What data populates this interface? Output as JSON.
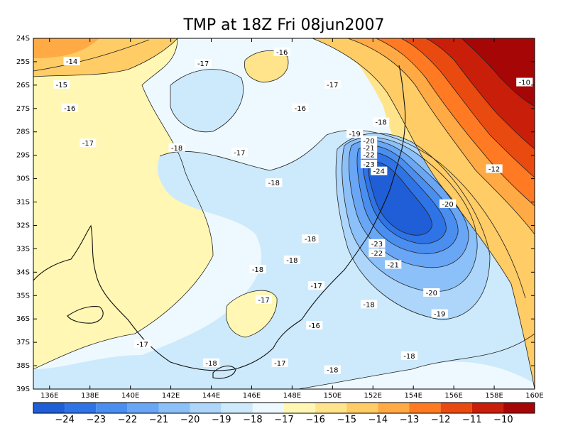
{
  "chart_data": {
    "type": "heatmap",
    "title": "TMP at 18Z Fri 08jun2007",
    "x_ticks": [
      "136E",
      "138E",
      "140E",
      "142E",
      "144E",
      "146E",
      "148E",
      "150E",
      "152E",
      "154E",
      "156E",
      "158E",
      "160E"
    ],
    "y_ticks": [
      "24S",
      "25S",
      "26S",
      "27S",
      "28S",
      "29S",
      "30S",
      "31S",
      "32S",
      "33S",
      "34S",
      "35S",
      "36S",
      "37S",
      "38S",
      "39S"
    ],
    "xlim": [
      135.2,
      160
    ],
    "ylim": [
      -39,
      -24
    ],
    "colorbar": {
      "levels": [
        -24,
        -23,
        -22,
        -21,
        -20,
        -19,
        -18,
        -17,
        -16,
        -15,
        -14,
        -13,
        -12,
        -11,
        -10
      ],
      "colors": [
        "#1f5ed6",
        "#2f74e6",
        "#4a8ef0",
        "#69a6f5",
        "#8cc0f8",
        "#add6fa",
        "#cdeafc",
        "#eef9ff",
        "#fff7b3",
        "#ffe48c",
        "#ffcc66",
        "#ffaa44",
        "#ff7a22",
        "#e94a10",
        "#c81e0a",
        "#a70606"
      ]
    },
    "contour_labels": [
      {
        "text": "-14",
        "lon": 137.1,
        "lat": -25.0
      },
      {
        "text": "-15",
        "lon": 136.6,
        "lat": -26.0
      },
      {
        "text": "-16",
        "lon": 137.0,
        "lat": -27.0
      },
      {
        "text": "-17",
        "lon": 137.9,
        "lat": -28.5
      },
      {
        "text": "-17",
        "lon": 143.6,
        "lat": -25.1
      },
      {
        "text": "-16",
        "lon": 147.5,
        "lat": -24.6
      },
      {
        "text": "-17",
        "lon": 150.0,
        "lat": -26.0
      },
      {
        "text": "-16",
        "lon": 148.4,
        "lat": -27.0
      },
      {
        "text": "-18",
        "lon": 142.3,
        "lat": -28.7
      },
      {
        "text": "-17",
        "lon": 145.4,
        "lat": -28.9
      },
      {
        "text": "-18",
        "lon": 147.1,
        "lat": -30.2
      },
      {
        "text": "-18",
        "lon": 152.4,
        "lat": -27.6
      },
      {
        "text": "-19",
        "lon": 151.1,
        "lat": -28.1
      },
      {
        "text": "-20",
        "lon": 151.8,
        "lat": -28.4
      },
      {
        "text": "-21",
        "lon": 151.8,
        "lat": -28.7
      },
      {
        "text": "-22",
        "lon": 151.8,
        "lat": -29.0
      },
      {
        "text": "-23",
        "lon": 151.8,
        "lat": -29.4
      },
      {
        "text": "-24",
        "lon": 152.3,
        "lat": -29.7
      },
      {
        "text": "-10",
        "lon": 159.5,
        "lat": -25.9
      },
      {
        "text": "-12",
        "lon": 158.0,
        "lat": -29.6
      },
      {
        "text": "-20",
        "lon": 155.7,
        "lat": -31.1
      },
      {
        "text": "-23",
        "lon": 152.2,
        "lat": -32.8
      },
      {
        "text": "-22",
        "lon": 152.2,
        "lat": -33.2
      },
      {
        "text": "-21",
        "lon": 153.0,
        "lat": -33.7
      },
      {
        "text": "-18",
        "lon": 148.9,
        "lat": -32.6
      },
      {
        "text": "-18",
        "lon": 146.3,
        "lat": -33.9
      },
      {
        "text": "-18",
        "lon": 148.0,
        "lat": -33.5
      },
      {
        "text": "-17",
        "lon": 149.2,
        "lat": -34.6
      },
      {
        "text": "-17",
        "lon": 146.6,
        "lat": -35.2
      },
      {
        "text": "-16",
        "lon": 149.1,
        "lat": -36.3
      },
      {
        "text": "-18",
        "lon": 151.8,
        "lat": -35.4
      },
      {
        "text": "-20",
        "lon": 154.9,
        "lat": -34.9
      },
      {
        "text": "-19",
        "lon": 155.3,
        "lat": -35.8
      },
      {
        "text": "-17",
        "lon": 140.6,
        "lat": -37.1
      },
      {
        "text": "-18",
        "lon": 144.0,
        "lat": -37.9
      },
      {
        "text": "-17",
        "lon": 147.4,
        "lat": -37.9
      },
      {
        "text": "-18",
        "lon": 150.0,
        "lat": -38.2
      },
      {
        "text": "-18",
        "lon": 153.8,
        "lat": -37.6
      }
    ]
  }
}
